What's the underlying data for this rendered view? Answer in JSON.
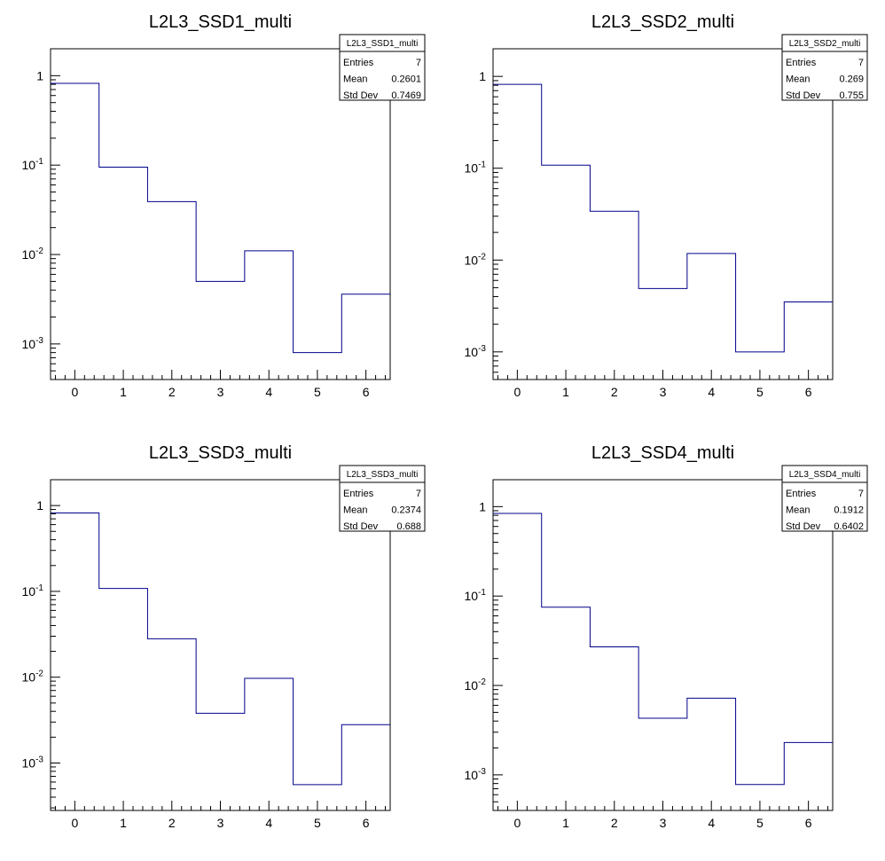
{
  "chart_data": [
    {
      "type": "bar",
      "title": "L2L3_SSD1_multi",
      "xlabel": "",
      "ylabel": "",
      "xlim": [
        -0.5,
        6.5
      ],
      "ylim": [
        0.0004,
        2
      ],
      "yscale": "log",
      "line_color": "#00008b",
      "x": [
        0,
        1,
        2,
        3,
        4,
        5,
        6
      ],
      "values": [
        0.82,
        0.095,
        0.039,
        0.005,
        0.011,
        0.0008,
        0.0036
      ],
      "stats": {
        "name": "L2L3_SSD1_multi",
        "entries_label": "Entries",
        "entries": "7",
        "mean_label": "Mean",
        "mean": "0.2601",
        "stddev_label": "Std Dev",
        "stddev": "0.7469"
      }
    },
    {
      "type": "bar",
      "title": "L2L3_SSD2_multi",
      "xlabel": "",
      "ylabel": "",
      "xlim": [
        -0.5,
        6.5
      ],
      "ylim": [
        0.0005,
        2
      ],
      "yscale": "log",
      "line_color": "#00008b",
      "x": [
        0,
        1,
        2,
        3,
        4,
        5,
        6
      ],
      "values": [
        0.82,
        0.108,
        0.034,
        0.0049,
        0.0118,
        0.001,
        0.0035
      ],
      "stats": {
        "name": "L2L3_SSD2_multi",
        "entries_label": "Entries",
        "entries": "7",
        "mean_label": "Mean",
        "mean": "0.269",
        "stddev_label": "Std Dev",
        "stddev": "0.755"
      }
    },
    {
      "type": "bar",
      "title": "L2L3_SSD3_multi",
      "xlabel": "",
      "ylabel": "",
      "xlim": [
        -0.5,
        6.5
      ],
      "ylim": [
        0.00028,
        2
      ],
      "yscale": "log",
      "line_color": "#00008b",
      "x": [
        0,
        1,
        2,
        3,
        4,
        5,
        6
      ],
      "values": [
        0.82,
        0.108,
        0.028,
        0.0038,
        0.0097,
        0.00056,
        0.0028
      ],
      "stats": {
        "name": "L2L3_SSD3_multi",
        "entries_label": "Entries",
        "entries": "7",
        "mean_label": "Mean",
        "mean": "0.2374",
        "stddev_label": "Std Dev",
        "stddev": "0.688"
      }
    },
    {
      "type": "bar",
      "title": "L2L3_SSD4_multi",
      "xlabel": "",
      "ylabel": "",
      "xlim": [
        -0.5,
        6.5
      ],
      "ylim": [
        0.0004,
        2
      ],
      "yscale": "log",
      "line_color": "#00008b",
      "x": [
        0,
        1,
        2,
        3,
        4,
        5,
        6
      ],
      "values": [
        0.84,
        0.075,
        0.027,
        0.0043,
        0.0072,
        0.00078,
        0.0023
      ],
      "stats": {
        "name": "L2L3_SSD4_multi",
        "entries_label": "Entries",
        "entries": "7",
        "mean_label": "Mean",
        "mean": "0.1912",
        "stddev_label": "Std Dev",
        "stddev": "0.6402"
      }
    }
  ]
}
